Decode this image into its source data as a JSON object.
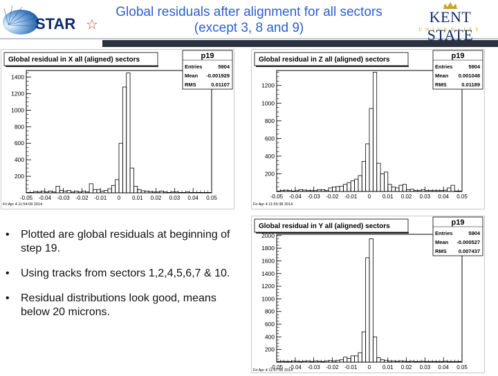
{
  "slide": {
    "title_line1": "Global residuals after alignment for all sectors",
    "title_line2": "(except 3, 8 and 9)",
    "star_logo_text": "STAR",
    "kent_logo_name": "KENT STATE",
    "kent_logo_sub": "UNIVERSITY"
  },
  "bullets": [
    "Plotted are global residuals at beginning of step 19.",
    "Using tracks from sectors 1,2,4,5,6,7 & 10.",
    "Residual distributions look good, means below 20 microns."
  ],
  "colors": {
    "title_blue": "#2b5fce",
    "header_bar": "#2c3140"
  },
  "chart_data": [
    {
      "type": "bar",
      "title": "Global residual in X all (aligned) sectors",
      "stats": {
        "name": "p19",
        "entries": "5904",
        "mean": "-0.001929",
        "rms": "0.01107"
      },
      "timestamp": "Fri Apr  4 11:54:09 2014",
      "xlim": [
        -0.05,
        0.05
      ],
      "ylim": [
        0,
        1480
      ],
      "xticks": [
        "-0.05",
        "-0.04",
        "-0.03",
        "-0.02",
        "-0.01",
        "0",
        "0.01",
        "0.02",
        "0.03",
        "0.04",
        "0.05"
      ],
      "yticks": [
        "200",
        "400",
        "600",
        "800",
        "1000",
        "1200",
        "1400"
      ],
      "ytick_values": [
        200,
        400,
        600,
        800,
        1000,
        1200,
        1400
      ],
      "bin_start": -0.05,
      "bin_width": 0.002,
      "values": [
        5,
        5,
        15,
        10,
        20,
        10,
        20,
        10,
        80,
        30,
        20,
        30,
        10,
        20,
        10,
        20,
        10,
        110,
        40,
        40,
        20,
        30,
        50,
        90,
        160,
        600,
        1280,
        1450,
        300,
        80,
        40,
        25,
        20,
        15,
        10,
        10,
        20,
        10,
        5,
        10,
        10,
        5,
        5,
        10,
        5,
        5,
        5,
        5,
        5,
        5
      ]
    },
    {
      "type": "bar",
      "title": "Global residual in Z all (aligned) sectors",
      "stats": {
        "name": "p19",
        "entries": "5904",
        "mean": "0.001048",
        "rms": "0.01189"
      },
      "timestamp": "Fri Apr  4 11:55:38 2014",
      "xlim": [
        -0.05,
        0.05
      ],
      "ylim": [
        0,
        1370
      ],
      "xticks": [
        "-0.05",
        "-0.04",
        "-0.03",
        "-0.02",
        "-0.01",
        "0",
        "0.01",
        "0.02",
        "0.03",
        "0.04",
        "0.05"
      ],
      "yticks": [
        "200",
        "400",
        "600",
        "800",
        "1000",
        "1200"
      ],
      "ytick_values": [
        200,
        400,
        600,
        800,
        1000,
        1200
      ],
      "bin_start": -0.05,
      "bin_width": 0.002,
      "values": [
        5,
        10,
        15,
        10,
        5,
        10,
        20,
        15,
        10,
        10,
        10,
        20,
        20,
        10,
        40,
        50,
        55,
        60,
        80,
        100,
        120,
        140,
        180,
        340,
        540,
        940,
        1350,
        320,
        200,
        220,
        80,
        50,
        40,
        70,
        80,
        20,
        25,
        10,
        10,
        20,
        10,
        10,
        10,
        10,
        10,
        15,
        40,
        70,
        5,
        5
      ]
    },
    {
      "type": "bar",
      "title": "Global residual in Y all (aligned) sectors",
      "stats": {
        "name": "p19",
        "entries": "5904",
        "mean": "-0.000527",
        "rms": "0.007437"
      },
      "timestamp": "Fri Apr  4 11:57:55 2014",
      "xlim": [
        -0.05,
        0.05
      ],
      "ylim": [
        0,
        2020
      ],
      "xticks": [
        "-0.05",
        "-0.04",
        "-0.03",
        "-0.02",
        "-0.01",
        "0",
        "0.01",
        "0.02",
        "0.03",
        "0.04",
        "0.05"
      ],
      "yticks": [
        "200",
        "400",
        "600",
        "800",
        "1000",
        "1200",
        "1400",
        "1600",
        "1800",
        "2000"
      ],
      "ytick_values": [
        200,
        400,
        600,
        800,
        1000,
        1200,
        1400,
        1600,
        1800,
        2000
      ],
      "bin_start": -0.05,
      "bin_width": 0.002,
      "values": [
        10,
        15,
        10,
        10,
        20,
        15,
        10,
        15,
        20,
        10,
        20,
        15,
        10,
        20,
        25,
        20,
        30,
        40,
        80,
        60,
        100,
        100,
        150,
        480,
        1650,
        1950,
        400,
        70,
        40,
        30,
        20,
        20,
        15,
        20,
        15,
        10,
        15,
        10,
        10,
        15,
        10,
        10,
        10,
        10,
        10,
        15,
        10,
        10,
        10,
        10
      ]
    }
  ]
}
